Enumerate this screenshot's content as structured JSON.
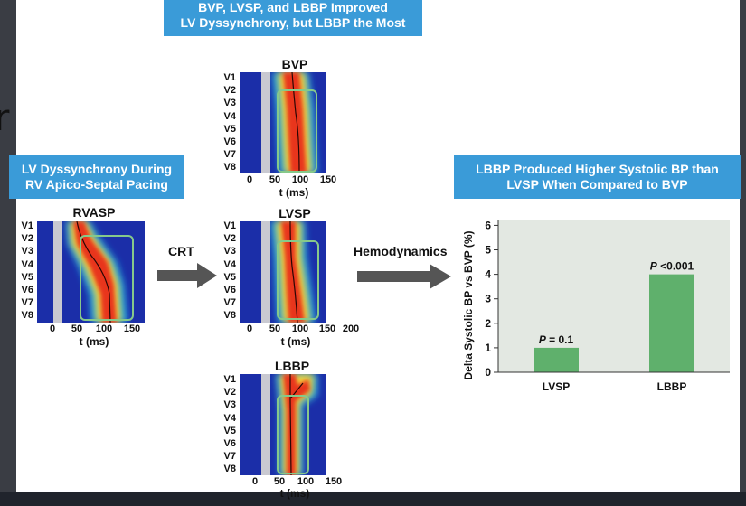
{
  "panels": {
    "top_banner": {
      "line1": "BVP, LVSP, and LBBP Improved",
      "line2": "LV Dyssynchrony, but LBBP the Most"
    },
    "left_banner": {
      "line1": "LV Dyssynchrony During",
      "line2": "RV Apico-Septal Pacing"
    },
    "right_banner": {
      "line1": "LBBP Produced Higher Systolic BP than",
      "line2": "LVSP When Compared to BVP"
    }
  },
  "leads": [
    "V1",
    "V2",
    "V3",
    "V4",
    "V5",
    "V6",
    "V7",
    "V8"
  ],
  "maps": {
    "rvasp": {
      "title": "RVASP",
      "ticks": [
        "0",
        "50",
        "100",
        "150"
      ],
      "xunit": "t (ms)"
    },
    "bvp": {
      "title": "BVP",
      "ticks": [
        "0",
        "50",
        "100",
        "150"
      ],
      "xunit": "t (ms)"
    },
    "lvsp": {
      "title": "LVSP",
      "ticks": [
        "0",
        "50",
        "100",
        "150",
        "200"
      ],
      "xunit": "t (ms)"
    },
    "lbbp": {
      "title": "LBBP",
      "ticks": [
        "0",
        "50",
        "100",
        "150"
      ],
      "xunit": "t (ms)"
    }
  },
  "arrows": {
    "crt": "CRT",
    "hemodynamics": "Hemodynamics"
  },
  "chart_data": {
    "type": "bar",
    "categories": [
      "LVSP",
      "LBBP"
    ],
    "values": [
      1.0,
      4.0
    ],
    "annotations": [
      "P = 0.1",
      "P <0.001"
    ],
    "ylabel": "Delta Systolic BP vs BVP (%)",
    "yticks": [
      "0",
      "1",
      "2",
      "3",
      "4",
      "5",
      "6"
    ],
    "ylim": [
      0,
      6.2
    ],
    "bar_color": "#5fb06c",
    "plot_bg": "#e3e8e2"
  },
  "colors": {
    "banner": "#3a9bd8",
    "arrow": "#555555",
    "box": "#86c98a"
  }
}
